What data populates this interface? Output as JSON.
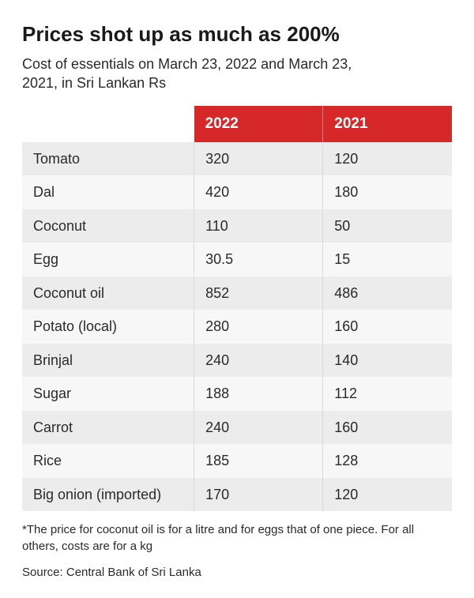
{
  "title": "Prices shot up as much as 200%",
  "subtitle": "Cost of essentials on March 23, 2022 and March 23, 2021, in Sri Lankan Rs",
  "table": {
    "type": "table",
    "columns": [
      "",
      "2022",
      "2021"
    ],
    "column_widths_pct": [
      40,
      30,
      30
    ],
    "header_bg": "#d62828",
    "header_text_color": "#ffffff",
    "row_bg_odd": "#ececec",
    "row_bg_even": "#f7f7f7",
    "cell_border_color": "#d9d9d9",
    "font_size_header": 19,
    "font_size_body": 18,
    "rows": [
      {
        "label": "Tomato",
        "y2022": "320",
        "y2021": "120"
      },
      {
        "label": "Dal",
        "y2022": "420",
        "y2021": "180"
      },
      {
        "label": "Coconut",
        "y2022": "110",
        "y2021": "50"
      },
      {
        "label": "Egg",
        "y2022": "30.5",
        "y2021": "15"
      },
      {
        "label": "Coconut oil",
        "y2022": "852",
        "y2021": "486"
      },
      {
        "label": "Potato (local)",
        "y2022": "280",
        "y2021": "160"
      },
      {
        "label": "Brinjal",
        "y2022": "240",
        "y2021": "140"
      },
      {
        "label": "Sugar",
        "y2022": "188",
        "y2021": "112"
      },
      {
        "label": "Carrot",
        "y2022": "240",
        "y2021": "160"
      },
      {
        "label": "Rice",
        "y2022": "185",
        "y2021": "128"
      },
      {
        "label": "Big onion (imported)",
        "y2022": "170",
        "y2021": "120"
      }
    ]
  },
  "footnote": "*The price for coconut oil is for a litre and for eggs that of one piece. For all others, costs are for a kg",
  "source": "Source: Central Bank of Sri Lanka",
  "styling": {
    "title_fontsize": 26,
    "title_weight": 700,
    "subtitle_fontsize": 18,
    "text_color": "#1a1a1a",
    "background_color": "#ffffff",
    "font_family": "Arial"
  }
}
